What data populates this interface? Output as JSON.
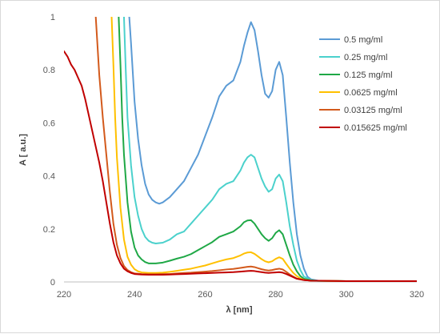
{
  "chart_data": {
    "type": "line",
    "title": "",
    "xlabel": "λ [nm]",
    "ylabel": "A [ a.u.]",
    "xlim": [
      220,
      320
    ],
    "ylim": [
      0,
      1
    ],
    "x_ticks": [
      "220",
      "240",
      "260",
      "280",
      "300",
      "320"
    ],
    "y_ticks": [
      "0",
      "0.2",
      "0.4",
      "0.6",
      "0.8",
      "1"
    ],
    "grid": false,
    "legend_position": "top-right",
    "series": [
      {
        "name": "0.5 mg/ml",
        "color": "#5b9bd5",
        "points": [
          [
            238.5,
            1.0
          ],
          [
            239,
            0.9
          ],
          [
            240,
            0.68
          ],
          [
            241,
            0.54
          ],
          [
            242,
            0.44
          ],
          [
            243,
            0.37
          ],
          [
            244,
            0.33
          ],
          [
            245,
            0.31
          ],
          [
            246,
            0.3
          ],
          [
            247,
            0.295
          ],
          [
            248,
            0.3
          ],
          [
            250,
            0.32
          ],
          [
            252,
            0.35
          ],
          [
            254,
            0.38
          ],
          [
            256,
            0.43
          ],
          [
            258,
            0.48
          ],
          [
            260,
            0.55
          ],
          [
            262,
            0.62
          ],
          [
            264,
            0.7
          ],
          [
            266,
            0.74
          ],
          [
            268,
            0.76
          ],
          [
            270,
            0.83
          ],
          [
            271,
            0.89
          ],
          [
            272,
            0.94
          ],
          [
            273,
            0.98
          ],
          [
            274,
            0.95
          ],
          [
            275,
            0.87
          ],
          [
            276,
            0.78
          ],
          [
            277,
            0.71
          ],
          [
            278,
            0.695
          ],
          [
            279,
            0.72
          ],
          [
            280,
            0.8
          ],
          [
            281,
            0.83
          ],
          [
            282,
            0.78
          ],
          [
            283,
            0.62
          ],
          [
            284,
            0.45
          ],
          [
            285,
            0.3
          ],
          [
            286,
            0.18
          ],
          [
            287,
            0.1
          ],
          [
            288,
            0.05
          ],
          [
            289,
            0.02
          ],
          [
            290,
            0.01
          ],
          [
            292,
            0.005
          ],
          [
            300,
            0.003
          ],
          [
            320,
            0.003
          ]
        ]
      },
      {
        "name": "0.25 mg/ml",
        "color": "#4bd1cc",
        "points": [
          [
            237,
            1.0
          ],
          [
            237.5,
            0.8
          ],
          [
            238,
            0.62
          ],
          [
            239,
            0.44
          ],
          [
            240,
            0.32
          ],
          [
            241,
            0.25
          ],
          [
            242,
            0.2
          ],
          [
            243,
            0.17
          ],
          [
            244,
            0.155
          ],
          [
            245,
            0.148
          ],
          [
            246,
            0.145
          ],
          [
            248,
            0.148
          ],
          [
            250,
            0.16
          ],
          [
            252,
            0.18
          ],
          [
            254,
            0.19
          ],
          [
            256,
            0.22
          ],
          [
            258,
            0.25
          ],
          [
            260,
            0.28
          ],
          [
            262,
            0.31
          ],
          [
            264,
            0.35
          ],
          [
            266,
            0.37
          ],
          [
            268,
            0.38
          ],
          [
            270,
            0.42
          ],
          [
            271,
            0.45
          ],
          [
            272,
            0.47
          ],
          [
            273,
            0.48
          ],
          [
            274,
            0.47
          ],
          [
            275,
            0.43
          ],
          [
            276,
            0.39
          ],
          [
            277,
            0.36
          ],
          [
            278,
            0.34
          ],
          [
            279,
            0.35
          ],
          [
            280,
            0.39
          ],
          [
            281,
            0.405
          ],
          [
            282,
            0.38
          ],
          [
            283,
            0.3
          ],
          [
            284,
            0.21
          ],
          [
            285,
            0.14
          ],
          [
            286,
            0.08
          ],
          [
            287,
            0.045
          ],
          [
            288,
            0.02
          ],
          [
            290,
            0.008
          ],
          [
            292,
            0.004
          ],
          [
            300,
            0.003
          ],
          [
            320,
            0.003
          ]
        ]
      },
      {
        "name": "0.125 mg/ml",
        "color": "#1fa846",
        "points": [
          [
            235.5,
            1.0
          ],
          [
            236,
            0.82
          ],
          [
            236.5,
            0.62
          ],
          [
            237,
            0.48
          ],
          [
            238,
            0.3
          ],
          [
            239,
            0.19
          ],
          [
            240,
            0.13
          ],
          [
            241,
            0.1
          ],
          [
            242,
            0.085
          ],
          [
            243,
            0.075
          ],
          [
            244,
            0.07
          ],
          [
            246,
            0.07
          ],
          [
            248,
            0.073
          ],
          [
            250,
            0.08
          ],
          [
            252,
            0.088
          ],
          [
            254,
            0.095
          ],
          [
            256,
            0.105
          ],
          [
            258,
            0.12
          ],
          [
            260,
            0.135
          ],
          [
            262,
            0.15
          ],
          [
            264,
            0.17
          ],
          [
            266,
            0.18
          ],
          [
            268,
            0.19
          ],
          [
            270,
            0.21
          ],
          [
            271,
            0.225
          ],
          [
            272,
            0.232
          ],
          [
            273,
            0.233
          ],
          [
            274,
            0.22
          ],
          [
            275,
            0.2
          ],
          [
            276,
            0.18
          ],
          [
            277,
            0.165
          ],
          [
            278,
            0.155
          ],
          [
            279,
            0.165
          ],
          [
            280,
            0.185
          ],
          [
            281,
            0.195
          ],
          [
            282,
            0.18
          ],
          [
            283,
            0.14
          ],
          [
            284,
            0.1
          ],
          [
            285,
            0.065
          ],
          [
            286,
            0.04
          ],
          [
            287,
            0.022
          ],
          [
            288,
            0.012
          ],
          [
            290,
            0.006
          ],
          [
            292,
            0.004
          ],
          [
            300,
            0.003
          ],
          [
            320,
            0.003
          ]
        ]
      },
      {
        "name": "0.0625 mg/ml",
        "color": "#ffc000",
        "points": [
          [
            233.5,
            1.0
          ],
          [
            234,
            0.82
          ],
          [
            234.5,
            0.62
          ],
          [
            235,
            0.47
          ],
          [
            236,
            0.28
          ],
          [
            237,
            0.16
          ],
          [
            238,
            0.095
          ],
          [
            239,
            0.065
          ],
          [
            240,
            0.048
          ],
          [
            241,
            0.04
          ],
          [
            242,
            0.036
          ],
          [
            244,
            0.034
          ],
          [
            246,
            0.034
          ],
          [
            248,
            0.035
          ],
          [
            250,
            0.038
          ],
          [
            252,
            0.042
          ],
          [
            254,
            0.046
          ],
          [
            256,
            0.05
          ],
          [
            258,
            0.056
          ],
          [
            260,
            0.062
          ],
          [
            262,
            0.07
          ],
          [
            264,
            0.078
          ],
          [
            266,
            0.085
          ],
          [
            268,
            0.09
          ],
          [
            270,
            0.1
          ],
          [
            271,
            0.107
          ],
          [
            272,
            0.111
          ],
          [
            273,
            0.112
          ],
          [
            274,
            0.106
          ],
          [
            275,
            0.096
          ],
          [
            276,
            0.086
          ],
          [
            277,
            0.078
          ],
          [
            278,
            0.074
          ],
          [
            279,
            0.078
          ],
          [
            280,
            0.087
          ],
          [
            281,
            0.093
          ],
          [
            282,
            0.087
          ],
          [
            283,
            0.068
          ],
          [
            284,
            0.05
          ],
          [
            285,
            0.034
          ],
          [
            286,
            0.022
          ],
          [
            287,
            0.013
          ],
          [
            288,
            0.008
          ],
          [
            290,
            0.005
          ],
          [
            300,
            0.003
          ],
          [
            320,
            0.003
          ]
        ]
      },
      {
        "name": "0.03125 mg/ml",
        "color": "#d35a1c",
        "points": [
          [
            229,
            1.0
          ],
          [
            230,
            0.78
          ],
          [
            231,
            0.62
          ],
          [
            232,
            0.48
          ],
          [
            233,
            0.34
          ],
          [
            234,
            0.22
          ],
          [
            235,
            0.14
          ],
          [
            236,
            0.09
          ],
          [
            237,
            0.06
          ],
          [
            238,
            0.045
          ],
          [
            239,
            0.037
          ],
          [
            240,
            0.032
          ],
          [
            242,
            0.03
          ],
          [
            244,
            0.029
          ],
          [
            246,
            0.029
          ],
          [
            248,
            0.03
          ],
          [
            250,
            0.03
          ],
          [
            252,
            0.032
          ],
          [
            254,
            0.034
          ],
          [
            256,
            0.035
          ],
          [
            258,
            0.037
          ],
          [
            260,
            0.039
          ],
          [
            262,
            0.041
          ],
          [
            264,
            0.044
          ],
          [
            266,
            0.047
          ],
          [
            268,
            0.049
          ],
          [
            270,
            0.053
          ],
          [
            272,
            0.057
          ],
          [
            273,
            0.058
          ],
          [
            274,
            0.056
          ],
          [
            275,
            0.052
          ],
          [
            276,
            0.048
          ],
          [
            277,
            0.045
          ],
          [
            278,
            0.043
          ],
          [
            279,
            0.045
          ],
          [
            280,
            0.048
          ],
          [
            281,
            0.05
          ],
          [
            282,
            0.047
          ],
          [
            283,
            0.038
          ],
          [
            284,
            0.028
          ],
          [
            285,
            0.02
          ],
          [
            286,
            0.013
          ],
          [
            288,
            0.007
          ],
          [
            290,
            0.005
          ],
          [
            300,
            0.003
          ],
          [
            320,
            0.003
          ]
        ]
      },
      {
        "name": "0.015625 mg/ml",
        "color": "#c00000",
        "points": [
          [
            220,
            0.87
          ],
          [
            221,
            0.85
          ],
          [
            222,
            0.82
          ],
          [
            223,
            0.8
          ],
          [
            224,
            0.77
          ],
          [
            225,
            0.74
          ],
          [
            226,
            0.69
          ],
          [
            227,
            0.63
          ],
          [
            228,
            0.57
          ],
          [
            229,
            0.51
          ],
          [
            230,
            0.45
          ],
          [
            231,
            0.38
          ],
          [
            232,
            0.3
          ],
          [
            233,
            0.22
          ],
          [
            234,
            0.15
          ],
          [
            235,
            0.1
          ],
          [
            236,
            0.07
          ],
          [
            237,
            0.05
          ],
          [
            238,
            0.04
          ],
          [
            239,
            0.034
          ],
          [
            240,
            0.03
          ],
          [
            242,
            0.028
          ],
          [
            244,
            0.027
          ],
          [
            246,
            0.027
          ],
          [
            248,
            0.027
          ],
          [
            250,
            0.028
          ],
          [
            252,
            0.029
          ],
          [
            254,
            0.03
          ],
          [
            256,
            0.031
          ],
          [
            258,
            0.032
          ],
          [
            260,
            0.033
          ],
          [
            262,
            0.034
          ],
          [
            264,
            0.035
          ],
          [
            266,
            0.036
          ],
          [
            268,
            0.037
          ],
          [
            270,
            0.039
          ],
          [
            272,
            0.041
          ],
          [
            273,
            0.042
          ],
          [
            274,
            0.041
          ],
          [
            275,
            0.039
          ],
          [
            276,
            0.037
          ],
          [
            277,
            0.035
          ],
          [
            278,
            0.034
          ],
          [
            279,
            0.035
          ],
          [
            280,
            0.036
          ],
          [
            281,
            0.037
          ],
          [
            282,
            0.035
          ],
          [
            283,
            0.03
          ],
          [
            284,
            0.024
          ],
          [
            285,
            0.018
          ],
          [
            286,
            0.012
          ],
          [
            288,
            0.007
          ],
          [
            290,
            0.005
          ],
          [
            300,
            0.003
          ],
          [
            320,
            0.003
          ]
        ]
      }
    ]
  }
}
